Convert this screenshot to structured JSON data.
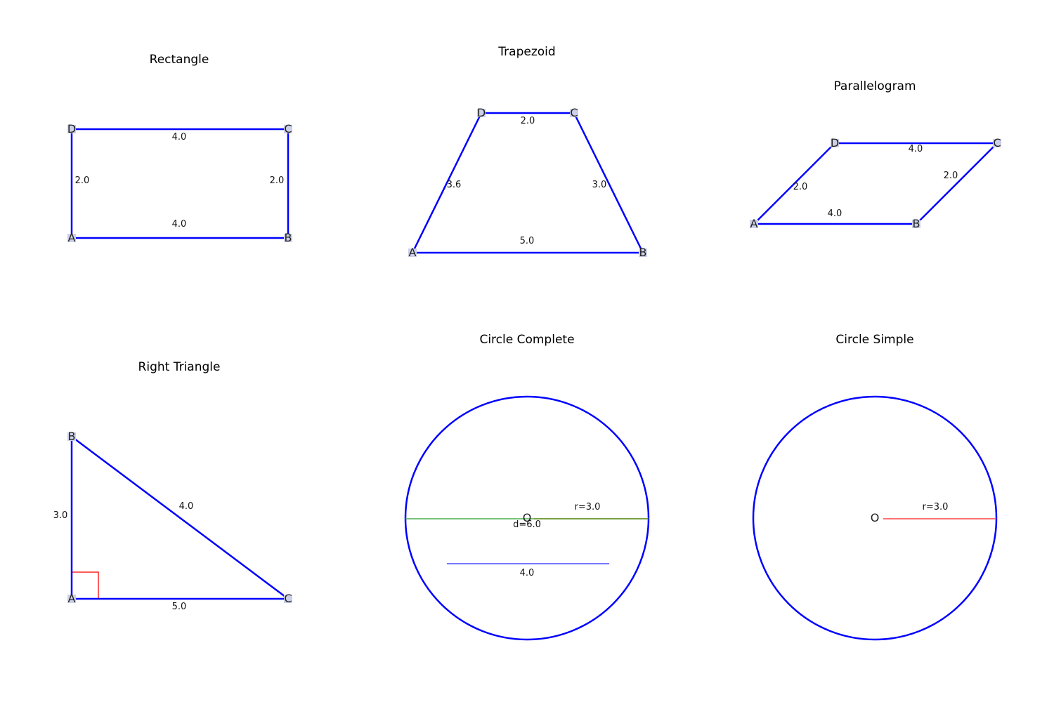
{
  "rectangle": {
    "title": "Rectangle",
    "vertices": {
      "A": "A",
      "B": "B",
      "C": "C",
      "D": "D"
    },
    "sides": {
      "AB": "4.0",
      "DC": "4.0",
      "AD": "2.0",
      "BC": "2.0"
    }
  },
  "trapezoid": {
    "title": "Trapezoid",
    "vertices": {
      "A": "A",
      "B": "B",
      "C": "C",
      "D": "D"
    },
    "sides": {
      "AB": "5.0",
      "DC": "2.0",
      "AD": "3.6",
      "BC": "3.0"
    }
  },
  "parallelogram": {
    "title": "Parallelogram",
    "vertices": {
      "A": "A",
      "B": "B",
      "C": "C",
      "D": "D"
    },
    "sides": {
      "AB": "4.0",
      "DC": "4.0",
      "AD": "2.0",
      "BC": "2.0"
    }
  },
  "right_triangle": {
    "title": "Right Triangle",
    "vertices": {
      "A": "A",
      "B": "B",
      "C": "C"
    },
    "sides": {
      "AB": "3.0",
      "AC": "5.0",
      "BC": "4.0"
    }
  },
  "circle_complete": {
    "title": "Circle Complete",
    "center": "O",
    "radius_label": "r=3.0",
    "diameter_label": "d=6.0",
    "chord_label": "4.0",
    "colors": {
      "circle": "#0000ff",
      "diameter": "#4caf50",
      "radius": "#6b8e23",
      "chord": "#4b4bff"
    }
  },
  "circle_simple": {
    "title": "Circle Simple",
    "center": "O",
    "radius_label": "r=3.0",
    "colors": {
      "circle": "#0000ff",
      "radius": "#ff4444"
    }
  }
}
